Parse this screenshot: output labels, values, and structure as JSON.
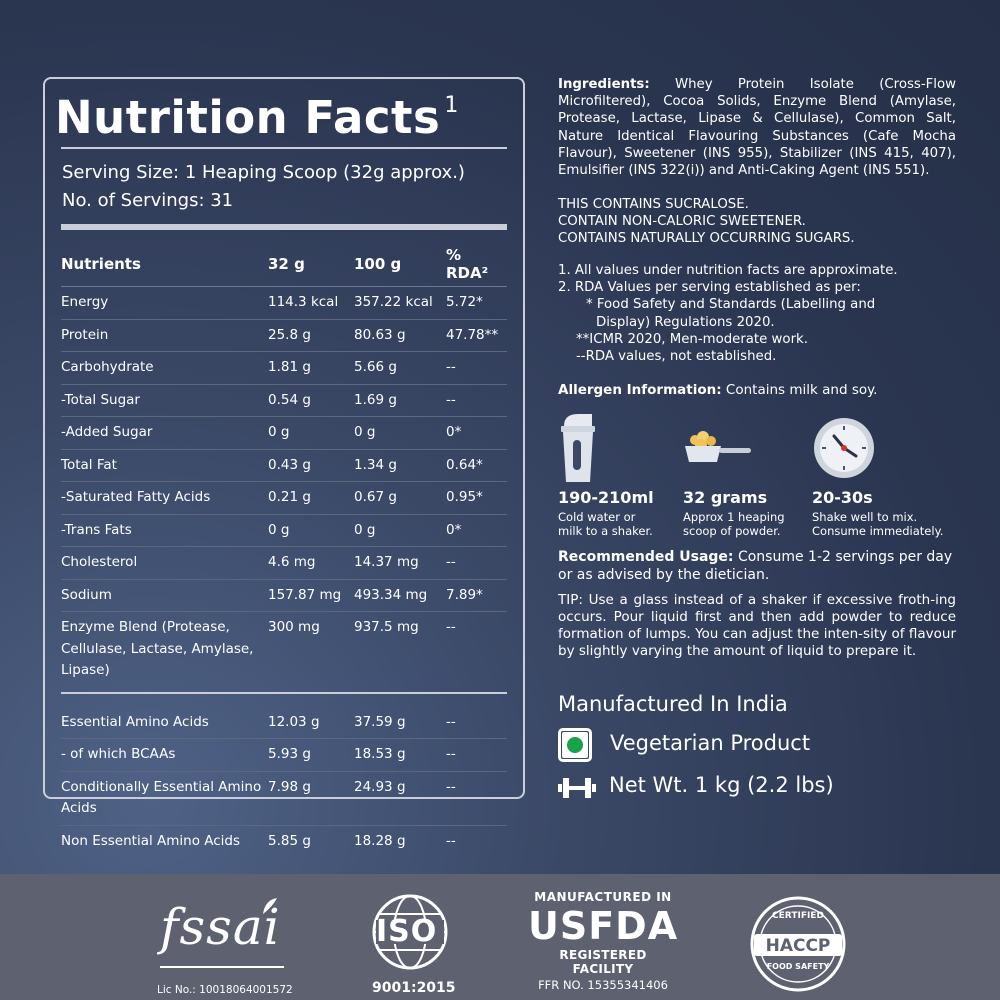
{
  "nutrition": {
    "title": "Nutrition Facts",
    "title_sup": "1",
    "serving_size": "Serving Size: 1 Heaping Scoop (32g approx.)",
    "servings": "No. of Servings: 31",
    "headers": [
      "Nutrients",
      "32 g",
      "100 g",
      "% RDA²"
    ],
    "rows": [
      {
        "name": "Energy",
        "v32": "114.3 kcal",
        "v100": "357.22 kcal",
        "rda": "5.72*",
        "indent": 0
      },
      {
        "name": "Protein",
        "v32": "25.8 g",
        "v100": "80.63 g",
        "rda": "47.78**",
        "indent": 0
      },
      {
        "name": "Carbohydrate",
        "v32": "1.81 g",
        "v100": "5.66 g",
        "rda": "--",
        "indent": 0
      },
      {
        "name": "-Total Sugar",
        "v32": "0.54 g",
        "v100": "1.69 g",
        "rda": "--",
        "indent": 1
      },
      {
        "name": "-Added Sugar",
        "v32": "0 g",
        "v100": "0 g",
        "rda": "0*",
        "indent": 2
      },
      {
        "name": "Total Fat",
        "v32": "0.43 g",
        "v100": "1.34 g",
        "rda": "0.64*",
        "indent": 0
      },
      {
        "name": "-Saturated Fatty Acids",
        "v32": "0.21 g",
        "v100": "0.67 g",
        "rda": "0.95*",
        "indent": 1
      },
      {
        "name": "-Trans Fats",
        "v32": "0 g",
        "v100": "0 g",
        "rda": "0*",
        "indent": 1
      },
      {
        "name": "Cholesterol",
        "v32": "4.6 mg",
        "v100": "14.37 mg",
        "rda": "--",
        "indent": 0
      },
      {
        "name": "Sodium",
        "v32": "157.87 mg",
        "v100": "493.34 mg",
        "rda": "7.89*",
        "indent": 0
      },
      {
        "name": "Enzyme Blend (Protease, Cellulase, Lactase, Amylase, Lipase)",
        "v32": "300 mg",
        "v100": "937.5 mg",
        "rda": "--",
        "indent": 0
      }
    ],
    "amino_rows": [
      {
        "name": "Essential Amino Acids",
        "v32": "12.03 g",
        "v100": "37.59 g",
        "rda": "--",
        "indent": 0
      },
      {
        "name": "- of which BCAAs",
        "v32": "5.93 g",
        "v100": "18.53 g",
        "rda": "--",
        "indent": 1
      },
      {
        "name": "Conditionally Essential Amino Acids",
        "v32": "7.98 g",
        "v100": "24.93 g",
        "rda": "--",
        "indent": 0
      },
      {
        "name": "Non Essential Amino Acids",
        "v32": "5.85 g",
        "v100": "18.28 g",
        "rda": "--",
        "indent": 0
      }
    ]
  },
  "ingredients": {
    "label": "Ingredients:",
    "text": " Whey Protein Isolate (Cross-Flow Microfiltered), Cocoa Solids, Enzyme Blend (Amylase, Protease, Lactase, Lipase & Cellulase), Common Salt, Nature Identical Flavouring Substances (Cafe Mocha Flavour), Sweetener (INS 955), Stabilizer (INS 415, 407), Emulsifier (INS 322(i)) and Anti-Caking Agent (INS 551)."
  },
  "warnings": [
    "THIS CONTAINS SUCRALOSE.",
    "CONTAIN NON-CALORIC SWEETENER.",
    "CONTAINS NATURALLY OCCURRING SUGARS."
  ],
  "notes": {
    "n1": "1.  All values under nutrition facts  are approximate.",
    "n2": "2.  RDA Values per serving established as per:",
    "n3": "* Food Safety and Standards (Labelling and",
    "n4": "Display) Regulations 2020.",
    "n5": "**ICMR 2020, Men-moderate work.",
    "n6": "--RDA values, not established."
  },
  "allergen": {
    "label": "Allergen Information:",
    "text": " Contains milk and soy."
  },
  "usage_icons": [
    {
      "icon": "shaker-icon",
      "value": "190-210ml",
      "desc1": "Cold water or",
      "desc2": "milk to a shaker."
    },
    {
      "icon": "scoop-icon",
      "value": "32 grams",
      "desc1": "Approx 1 heaping",
      "desc2": "scoop of powder."
    },
    {
      "icon": "clock-icon",
      "value": "20-30s",
      "desc1": "Shake well to mix.",
      "desc2": "Consume immediately."
    }
  ],
  "recommended": {
    "label": "Recommended Usage:",
    "text": " Consume 1-2 servings per day or as advised by the dietician."
  },
  "tip": "TIP: Use a glass instead of a shaker if excessive froth-ing occurs. Pour liquid first and then add powder to reduce formation of lumps. You can adjust the inten-sity of flavour by slightly varying the amount of liquid to prepare it.",
  "manufactured": "Manufactured In India",
  "vegetarian": "Vegetarian Product",
  "net_wt": "Net Wt. 1 kg (2.2 lbs)",
  "footer": {
    "fssai_word": "fssai",
    "fssai_lic": "Lic No.: 10018064001572",
    "iso_word": "ISO",
    "iso_num": "9001:2015",
    "usfda_l1": "MANUFACTURED IN",
    "usfda_l2": "USFDA",
    "usfda_l3": "REGISTERED FACILITY",
    "usfda_l4": "FFR NO. 15355341406",
    "haccp_top": "CERTIFIED",
    "haccp_mid": "HACCP",
    "haccp_bottom": "FOOD SAFETY"
  },
  "colors": {
    "background": "#2f3a55",
    "border": "#c9ced8",
    "footer": "#5d6170",
    "veg_green": "#17a34a",
    "clock_red": "#d9342b"
  }
}
